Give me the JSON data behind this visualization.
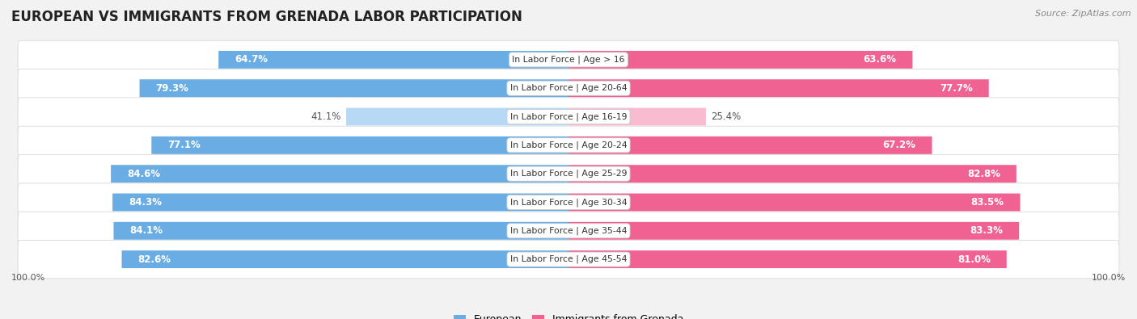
{
  "title": "EUROPEAN VS IMMIGRANTS FROM GRENADA LABOR PARTICIPATION",
  "source": "Source: ZipAtlas.com",
  "categories": [
    "In Labor Force | Age > 16",
    "In Labor Force | Age 20-64",
    "In Labor Force | Age 16-19",
    "In Labor Force | Age 20-24",
    "In Labor Force | Age 25-29",
    "In Labor Force | Age 30-34",
    "In Labor Force | Age 35-44",
    "In Labor Force | Age 45-54"
  ],
  "european": [
    64.7,
    79.3,
    41.1,
    77.1,
    84.6,
    84.3,
    84.1,
    82.6
  ],
  "grenada": [
    63.6,
    77.7,
    25.4,
    67.2,
    82.8,
    83.5,
    83.3,
    81.0
  ],
  "european_color": "#6aade4",
  "grenada_color": "#f06292",
  "european_light_color": "#b8d9f5",
  "grenada_light_color": "#f8bbd0",
  "background_color": "#f2f2f2",
  "row_bg_color": "#ffffff",
  "row_border_color": "#d8d8d8",
  "title_fontsize": 12,
  "bar_height": 0.62,
  "max_value": 100.0,
  "legend_european": "European",
  "legend_grenada": "Immigrants from Grenada",
  "value_fontsize": 8.5,
  "cat_fontsize": 7.8
}
